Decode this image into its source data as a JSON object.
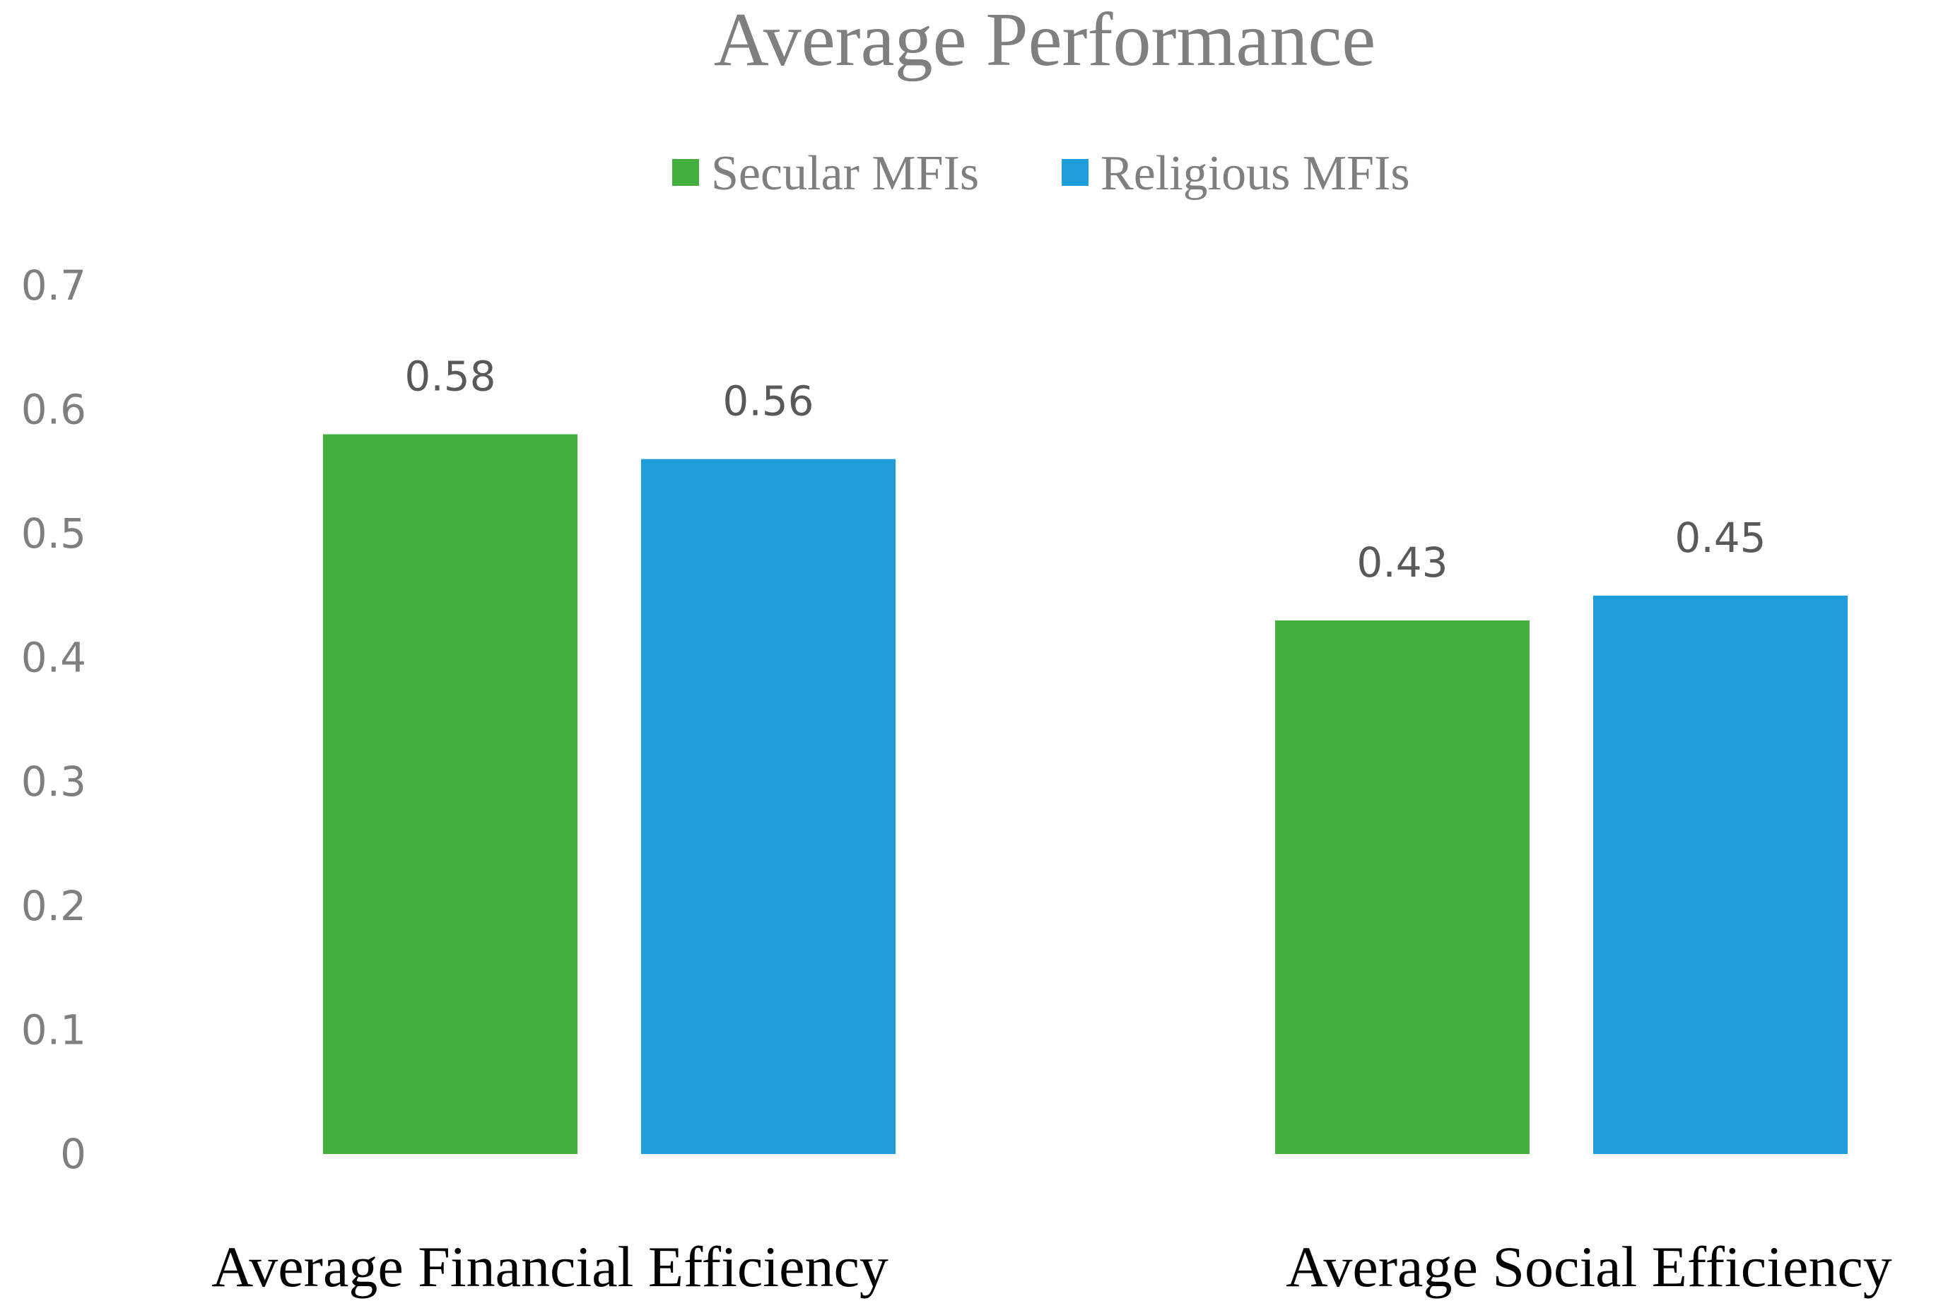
{
  "chart_data": {
    "type": "bar",
    "title": "Average Performance",
    "xlabel": "",
    "ylabel": "",
    "ylim": [
      0,
      0.7
    ],
    "yticks": [
      0,
      0.1,
      0.2,
      0.3,
      0.4,
      0.5,
      0.6,
      0.7
    ],
    "ytick_labels": [
      "0",
      "0.1",
      "0.2",
      "0.3",
      "0.4",
      "0.5",
      "0.6",
      "0.7"
    ],
    "grid": false,
    "legend_position": "top-center",
    "categories": [
      "Average Financial Efficiency",
      "Average Social Efficiency"
    ],
    "series": [
      {
        "name": "Secular MFIs",
        "color": "#44af3d",
        "values": [
          0.58,
          0.43
        ],
        "labels": [
          "0.58",
          "0.43"
        ]
      },
      {
        "name": "Religious MFIs",
        "color": "#1f9ddb",
        "values": [
          0.56,
          0.45
        ],
        "labels": [
          "0.56",
          "0.45"
        ]
      }
    ]
  }
}
